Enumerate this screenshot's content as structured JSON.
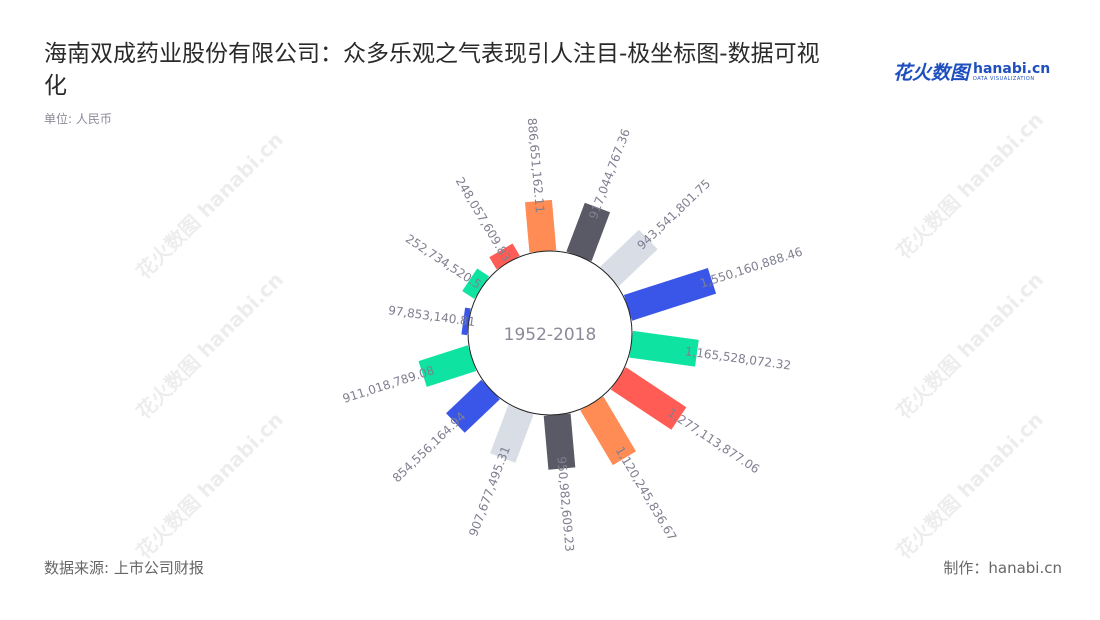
{
  "title": "海南双成药业股份有限公司：众多乐观之气表现引人注目-极坐标图-数据可视化",
  "unit": "单位: 人民币",
  "logo": {
    "cn": "花火数图",
    "en": "hanabi.cn",
    "tagline": "DATA VISUALIZATION"
  },
  "watermark": "花火数图 hanabi.cn",
  "footer": {
    "source": "数据来源: 上市公司财报",
    "maker": "制作：hanabi.cn"
  },
  "chart_data": {
    "type": "bar",
    "polar": true,
    "center_label": "1952-2018",
    "values": [
      886651162.11,
      917044767.36,
      943541801.75,
      1550160888.46,
      1165528072.32,
      1277113877.06,
      1120245836.67,
      950982609.23,
      907677495.31,
      854556164.94,
      911018789.08,
      97853140.81,
      252734520.5,
      248057609.83
    ],
    "labels": [
      "886,651,162.11",
      "917,044,767.36",
      "943,541,801.75",
      "1,550,160,888.46",
      "1,165,528,072.32",
      "1,277,113,877.06",
      "1,120,245,836.67",
      "950,982,609.23",
      "907,677,495.31",
      "854,556,164.94",
      "911,018,789.08",
      "97,853,140.81",
      "252,734,520.5",
      "248,057,609.83"
    ],
    "colors": [
      "#ff8c55",
      "#5a5a66",
      "#d9dde6",
      "#3a56e8",
      "#0ee3a1",
      "#ff5c55",
      "#ff8c55",
      "#5a5a66",
      "#d9dde6",
      "#3a56e8",
      "#0ee3a1",
      "#3a56e8",
      "#0ee3a1",
      "#ff5c55"
    ],
    "direction": "clockwise",
    "grid": false
  }
}
